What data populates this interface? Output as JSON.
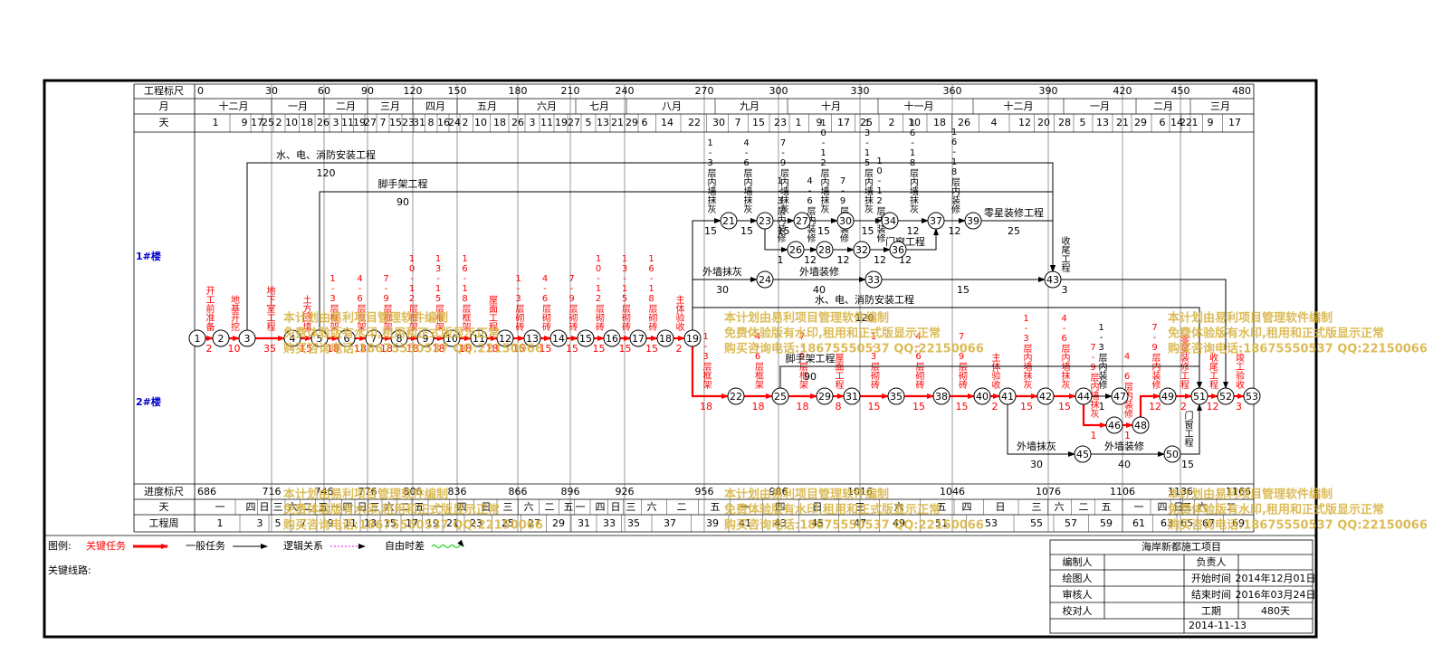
{
  "header_rows": {
    "ruler": "工程标尺",
    "month": "月",
    "day": "天",
    "progress": "进度标尺",
    "weekday": "天",
    "week": "工程周"
  },
  "lanes": [
    "1#楼",
    "2#楼"
  ],
  "top_ruler": [
    0,
    30,
    60,
    90,
    120,
    150,
    180,
    210,
    240,
    270,
    300,
    330,
    360,
    390,
    420,
    450,
    480
  ],
  "months": [
    "十二月",
    "一月",
    "二月",
    "三月",
    "四月",
    "五月",
    "六月",
    "七月",
    "八月",
    "九月",
    "十月",
    "十一月",
    "十二月",
    "一月",
    "二月",
    "三月"
  ],
  "days": [
    1,
    9,
    17,
    25,
    2,
    10,
    18,
    26,
    3,
    11,
    19,
    27,
    7,
    15,
    23,
    31,
    8,
    16,
    24,
    2,
    10,
    18,
    26,
    3,
    11,
    19,
    27,
    5,
    13,
    21,
    29,
    6,
    14,
    22,
    30,
    7,
    15,
    23,
    1,
    9,
    17,
    25,
    2,
    10,
    18,
    26,
    4,
    12,
    20,
    28,
    5,
    13,
    21,
    29,
    6,
    14,
    22,
    1,
    9,
    17
  ],
  "bottom_ruler": [
    686,
    716,
    746,
    776,
    806,
    836,
    866,
    896,
    926,
    956,
    986,
    1016,
    1046,
    1076,
    1106,
    1136,
    1166
  ],
  "weekdays": [
    "一",
    "四",
    "日",
    "三",
    "六",
    "二",
    "五",
    "一",
    "四",
    "日",
    "三",
    "六",
    "二",
    "五",
    "一",
    "四",
    "日",
    "三",
    "六",
    "二",
    "五",
    "一",
    "四",
    "日",
    "三",
    "六",
    "二",
    "五",
    "一",
    "四",
    "日",
    "三",
    "六",
    "五",
    "四",
    "日",
    "三",
    "六",
    "二",
    "五",
    "一",
    "四",
    "日",
    "三",
    "六",
    "二"
  ],
  "weeks": [
    1,
    3,
    5,
    7,
    9,
    11,
    13,
    15,
    17,
    19,
    21,
    23,
    25,
    27,
    29,
    31,
    33,
    35,
    37,
    39,
    41,
    43,
    45,
    47,
    49,
    51,
    53,
    55,
    57,
    59,
    61,
    63,
    65,
    67,
    69
  ],
  "nodes": [
    1,
    2,
    3,
    4,
    5,
    6,
    7,
    8,
    9,
    10,
    11,
    12,
    13,
    14,
    15,
    16,
    17,
    18,
    19,
    21,
    23,
    26,
    27,
    28,
    30,
    32,
    34,
    36,
    37,
    39,
    43,
    24,
    33,
    22,
    25,
    29,
    31,
    35,
    38,
    40,
    41,
    42,
    44,
    47,
    46,
    48,
    49,
    51,
    52,
    53,
    45,
    50
  ],
  "activities": [
    {
      "name": "开工前准备",
      "duration": 2,
      "color": "#ff0000"
    },
    {
      "name": "地基开挖",
      "duration": 10,
      "color": "#ff0000"
    },
    {
      "name": "地下室工程",
      "duration": 35,
      "color": "#ff0000"
    },
    {
      "name": "土方回填",
      "duration": 15,
      "color": "#ff0000"
    },
    {
      "name": "1-3层框架",
      "duration": 18,
      "color": "#ff0000"
    },
    {
      "name": "4-6层框架",
      "duration": 18,
      "color": "#ff0000"
    },
    {
      "name": "7-9层框架",
      "duration": 18,
      "color": "#ff0000"
    },
    {
      "name": "10-12层框架",
      "duration": 18,
      "color": "#ff0000"
    },
    {
      "name": "13-15层框架",
      "duration": 18,
      "color": "#ff0000"
    },
    {
      "name": "16-18层框架",
      "duration": 18,
      "color": "#ff0000"
    },
    {
      "name": "屋面工程",
      "duration": 18,
      "color": "#ff0000"
    },
    {
      "name": "1-3层砌砖",
      "duration": 15,
      "color": "#ff0000"
    },
    {
      "name": "4-6层砌砖",
      "duration": 15,
      "color": "#ff0000"
    },
    {
      "name": "7-9层砌砖",
      "duration": 15,
      "color": "#ff0000"
    },
    {
      "name": "10-12层砌砖",
      "duration": 15,
      "color": "#ff0000"
    },
    {
      "name": "13-15层砌砖",
      "duration": 15,
      "color": "#ff0000"
    },
    {
      "name": "16-18层砌砖",
      "duration": 15,
      "color": "#ff0000"
    },
    {
      "name": "主体验收",
      "duration": 2,
      "color": "#ff0000"
    },
    {
      "name": "水、电、消防安装工程",
      "duration": 120,
      "color": "#000000"
    },
    {
      "name": "脚手架工程",
      "duration": 90,
      "color": "#000000"
    },
    {
      "name": "1-3层内墙抹灰",
      "duration": 15,
      "color": "#000000"
    },
    {
      "name": "4-6层内墙抹灰",
      "duration": 15,
      "color": "#000000"
    },
    {
      "name": "7-9层内墙抹灰",
      "duration": 15,
      "color": "#000000"
    },
    {
      "name": "1-3层内装修",
      "duration": 1,
      "color": "#000000"
    },
    {
      "name": "4-6层内装修",
      "duration": 12,
      "color": "#000000"
    },
    {
      "name": "10-12层内墙抹灰",
      "duration": 15,
      "color": "#000000"
    },
    {
      "name": "7-9层内装修",
      "duration": 12,
      "color": "#000000"
    },
    {
      "name": "13-15层内墙抹灰",
      "duration": 15,
      "color": "#000000"
    },
    {
      "name": "10-12层内装修",
      "duration": 12,
      "color": "#000000"
    },
    {
      "name": "16-18层内墙抹灰",
      "duration": 12,
      "color": "#000000"
    },
    {
      "name": "门窗工程",
      "duration": 12,
      "color": "#000000"
    },
    {
      "name": "16-18层内装修",
      "duration": 12,
      "color": "#000000"
    },
    {
      "name": "零星装修工程",
      "duration": 25,
      "color": "#000000"
    },
    {
      "name": "外墙抹灰",
      "duration": 30,
      "color": "#000000"
    },
    {
      "name": "外墙装修",
      "duration": 40,
      "color": "#000000"
    },
    {
      "duration": 15,
      "color": "#000000"
    },
    {
      "name": "收尾工程",
      "duration": 3,
      "color": "#000000"
    },
    {
      "name": "1-3层框架",
      "duration": 18,
      "color": "#ff0000"
    },
    {
      "name": "4-6层框架",
      "duration": 18,
      "color": "#ff0000"
    },
    {
      "name": "7-9层框架",
      "duration": 18,
      "color": "#ff0000"
    },
    {
      "name": "屋面工程",
      "duration": 8,
      "color": "#ff0000"
    },
    {
      "name": "1-3层砌砖",
      "duration": 15,
      "color": "#ff0000"
    },
    {
      "name": "4-6层砌砖",
      "duration": 15,
      "color": "#ff0000"
    },
    {
      "name": "7-9层砌砖",
      "duration": 15,
      "color": "#ff0000"
    },
    {
      "name": "主体验收",
      "duration": 2,
      "color": "#ff0000"
    },
    {
      "name": "1-3层内墙抹灰",
      "duration": 15,
      "color": "#ff0000"
    },
    {
      "name": "4-6层内墙抹灰",
      "duration": 15,
      "color": "#ff0000"
    },
    {
      "name": "7-9层内墙抹灰",
      "duration": 1,
      "color": "#ff0000"
    },
    {
      "name": "1-3层内装修",
      "duration": 1,
      "color": "#000000"
    },
    {
      "name": "4-6层内装修",
      "duration": 1,
      "color": "#ff0000"
    },
    {
      "name": "7-9层内装修",
      "duration": 12,
      "color": "#ff0000"
    },
    {
      "name": "零星装修工程",
      "duration": 2,
      "color": "#ff0000"
    },
    {
      "name": "收尾工程",
      "duration": 12,
      "color": "#ff0000"
    },
    {
      "name": "竣工验收",
      "duration": 3,
      "color": "#ff0000"
    },
    {
      "name": "外墙抹灰",
      "duration": 30,
      "color": "#000000"
    },
    {
      "name": "外墙装修",
      "duration": 40,
      "color": "#000000"
    },
    {
      "name": "门窗工程",
      "duration": 15,
      "color": "#000000"
    },
    {
      "name": "水、电、消防安装工程",
      "duration": 120,
      "color": "#000000"
    },
    {
      "name": "脚手架工程",
      "duration": 90,
      "color": "#000000"
    }
  ],
  "legend": {
    "title": "图例:",
    "items": [
      {
        "name": "关键任务",
        "color": "#ff0000"
      },
      {
        "name": "一般任务",
        "color": "#000000"
      },
      {
        "name": "逻辑关系",
        "color": "#ff00ff"
      },
      {
        "name": "自由时差",
        "color": "#00cc00"
      }
    ],
    "critical_path": "关键线路:"
  },
  "watermark": [
    "本计划由易利项目管理软件编制",
    "免费体验版有水印,租用和正式版显示正常",
    "购买咨询电话:18675550537 QQ:22150066"
  ],
  "info": {
    "title": "海岸新都施工项目",
    "left": [
      "编制人",
      "绘图人",
      "审核人",
      "校对人"
    ],
    "right": [
      {
        "label": "负责人"
      },
      {
        "label": "开始时间",
        "value": "2014年12月01日"
      },
      {
        "label": "结束时间",
        "value": "2016年03月24日"
      },
      {
        "label": "工期",
        "value": "480天"
      }
    ],
    "date": "2014-11-13"
  }
}
